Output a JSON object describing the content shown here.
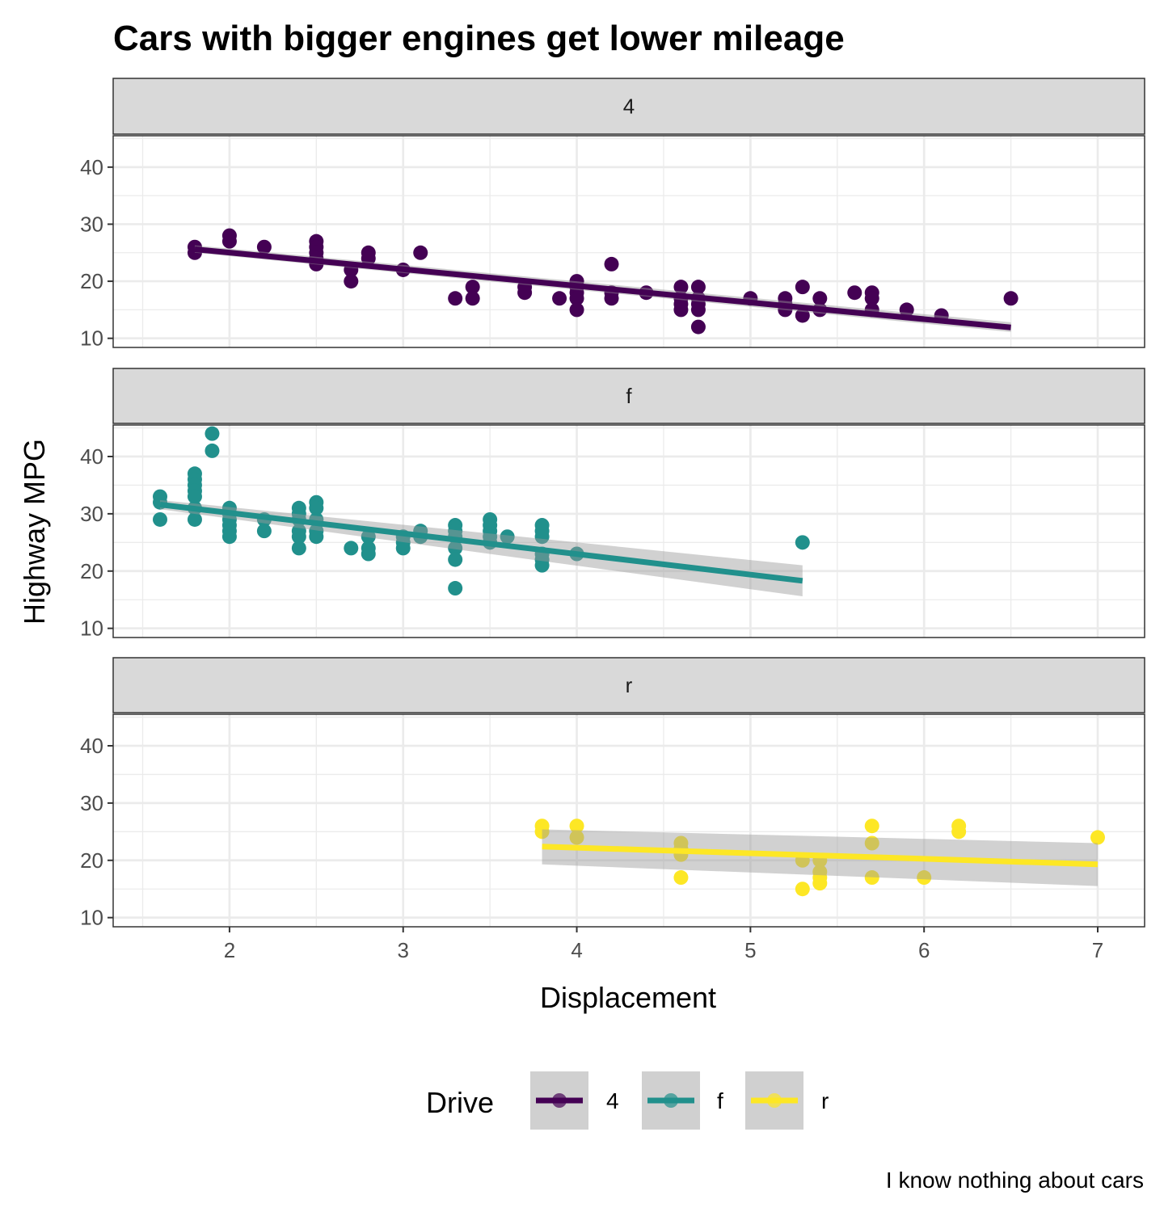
{
  "chart_data": {
    "type": "scatter",
    "title": "Cars with bigger engines get lower mileage",
    "xlabel": "Displacement",
    "ylabel": "Highway MPG",
    "caption": "I know nothing about cars",
    "xlim": [
      1.33,
      7.27
    ],
    "ylim": [
      8.4,
      45.5
    ],
    "x_ticks": [
      2,
      3,
      4,
      5,
      6,
      7
    ],
    "x_tick_labels": [
      "2",
      "3",
      "4",
      "5",
      "6",
      "7"
    ],
    "y_ticks": [
      10,
      20,
      30,
      40
    ],
    "y_tick_labels": [
      "10",
      "20",
      "30",
      "40"
    ],
    "grid": true,
    "legend": {
      "title": "Drive",
      "position": "bottom",
      "entries": [
        {
          "label": "4",
          "color": "#440154"
        },
        {
          "label": "f",
          "color": "#21908C"
        },
        {
          "label": "r",
          "color": "#FDE725"
        }
      ]
    },
    "facets": [
      {
        "strip": "4",
        "color": "#440154",
        "trend": {
          "x": [
            1.8,
            6.5
          ],
          "y": [
            25.6,
            11.9
          ],
          "ci_low": [
            25.0,
            11.1
          ],
          "ci_high": [
            26.3,
            12.8
          ]
        },
        "points": [
          [
            1.8,
            26
          ],
          [
            1.8,
            25
          ],
          [
            2.0,
            28
          ],
          [
            2.0,
            27
          ],
          [
            2.2,
            26
          ],
          [
            2.5,
            27
          ],
          [
            2.5,
            26
          ],
          [
            2.5,
            25
          ],
          [
            2.5,
            24
          ],
          [
            2.5,
            23
          ],
          [
            2.7,
            22
          ],
          [
            2.7,
            20
          ],
          [
            2.8,
            25
          ],
          [
            2.8,
            24
          ],
          [
            3.0,
            22
          ],
          [
            3.1,
            25
          ],
          [
            3.3,
            17
          ],
          [
            3.4,
            19
          ],
          [
            3.4,
            17
          ],
          [
            3.7,
            19
          ],
          [
            3.7,
            18
          ],
          [
            3.9,
            17
          ],
          [
            4.0,
            20
          ],
          [
            4.0,
            19
          ],
          [
            4.0,
            18
          ],
          [
            4.0,
            17
          ],
          [
            4.0,
            15
          ],
          [
            4.2,
            23
          ],
          [
            4.2,
            18
          ],
          [
            4.2,
            17
          ],
          [
            4.4,
            18
          ],
          [
            4.6,
            19
          ],
          [
            4.6,
            17
          ],
          [
            4.6,
            16
          ],
          [
            4.6,
            15
          ],
          [
            4.7,
            19
          ],
          [
            4.7,
            17
          ],
          [
            4.7,
            16
          ],
          [
            4.7,
            15
          ],
          [
            4.7,
            12
          ],
          [
            5.0,
            17
          ],
          [
            5.2,
            17
          ],
          [
            5.2,
            16
          ],
          [
            5.2,
            15
          ],
          [
            5.3,
            19
          ],
          [
            5.3,
            14
          ],
          [
            5.4,
            17
          ],
          [
            5.4,
            15
          ],
          [
            5.6,
            18
          ],
          [
            5.7,
            18
          ],
          [
            5.7,
            17
          ],
          [
            5.7,
            15
          ],
          [
            5.9,
            15
          ],
          [
            6.1,
            14
          ],
          [
            6.5,
            17
          ]
        ]
      },
      {
        "strip": "f",
        "color": "#21908C",
        "trend": {
          "x": [
            1.6,
            5.3
          ],
          "y": [
            31.6,
            18.3
          ],
          "ci_low": [
            30.8,
            15.6
          ],
          "ci_high": [
            32.4,
            21.0
          ]
        },
        "points": [
          [
            1.6,
            33
          ],
          [
            1.6,
            32
          ],
          [
            1.6,
            29
          ],
          [
            1.8,
            37
          ],
          [
            1.8,
            36
          ],
          [
            1.8,
            35
          ],
          [
            1.8,
            34
          ],
          [
            1.8,
            33
          ],
          [
            1.8,
            31
          ],
          [
            1.8,
            29
          ],
          [
            1.9,
            44
          ],
          [
            1.9,
            41
          ],
          [
            2.0,
            31
          ],
          [
            2.0,
            30
          ],
          [
            2.0,
            29
          ],
          [
            2.0,
            28
          ],
          [
            2.0,
            27
          ],
          [
            2.0,
            26
          ],
          [
            2.2,
            29
          ],
          [
            2.2,
            27
          ],
          [
            2.4,
            31
          ],
          [
            2.4,
            30
          ],
          [
            2.4,
            29
          ],
          [
            2.4,
            27
          ],
          [
            2.4,
            26
          ],
          [
            2.4,
            24
          ],
          [
            2.5,
            32
          ],
          [
            2.5,
            31
          ],
          [
            2.5,
            29
          ],
          [
            2.5,
            27
          ],
          [
            2.5,
            26
          ],
          [
            2.7,
            24
          ],
          [
            2.8,
            26
          ],
          [
            2.8,
            24
          ],
          [
            2.8,
            23
          ],
          [
            3.0,
            26
          ],
          [
            3.0,
            25
          ],
          [
            3.0,
            24
          ],
          [
            3.1,
            27
          ],
          [
            3.1,
            26
          ],
          [
            3.3,
            28
          ],
          [
            3.3,
            27
          ],
          [
            3.3,
            26
          ],
          [
            3.3,
            24
          ],
          [
            3.3,
            22
          ],
          [
            3.3,
            17
          ],
          [
            3.5,
            29
          ],
          [
            3.5,
            28
          ],
          [
            3.5,
            27
          ],
          [
            3.5,
            26
          ],
          [
            3.5,
            25
          ],
          [
            3.6,
            26
          ],
          [
            3.8,
            28
          ],
          [
            3.8,
            27
          ],
          [
            3.8,
            26
          ],
          [
            3.8,
            23
          ],
          [
            3.8,
            22
          ],
          [
            3.8,
            21
          ],
          [
            4.0,
            23
          ],
          [
            5.3,
            25
          ]
        ]
      },
      {
        "strip": "r",
        "color": "#FDE725",
        "trend": {
          "x": [
            3.8,
            7.0
          ],
          "y": [
            22.4,
            19.3
          ],
          "ci_low": [
            19.3,
            15.5
          ],
          "ci_high": [
            25.4,
            23.0
          ]
        },
        "points": [
          [
            3.8,
            26
          ],
          [
            3.8,
            25
          ],
          [
            4.0,
            26
          ],
          [
            4.0,
            24
          ],
          [
            4.6,
            23
          ],
          [
            4.6,
            22
          ],
          [
            4.6,
            21
          ],
          [
            4.6,
            17
          ],
          [
            5.3,
            20
          ],
          [
            5.3,
            15
          ],
          [
            5.4,
            20
          ],
          [
            5.4,
            18
          ],
          [
            5.4,
            17
          ],
          [
            5.4,
            16
          ],
          [
            5.7,
            26
          ],
          [
            5.7,
            23
          ],
          [
            5.7,
            17
          ],
          [
            6.0,
            17
          ],
          [
            6.2,
            26
          ],
          [
            6.2,
            25
          ],
          [
            7.0,
            24
          ]
        ]
      }
    ]
  }
}
